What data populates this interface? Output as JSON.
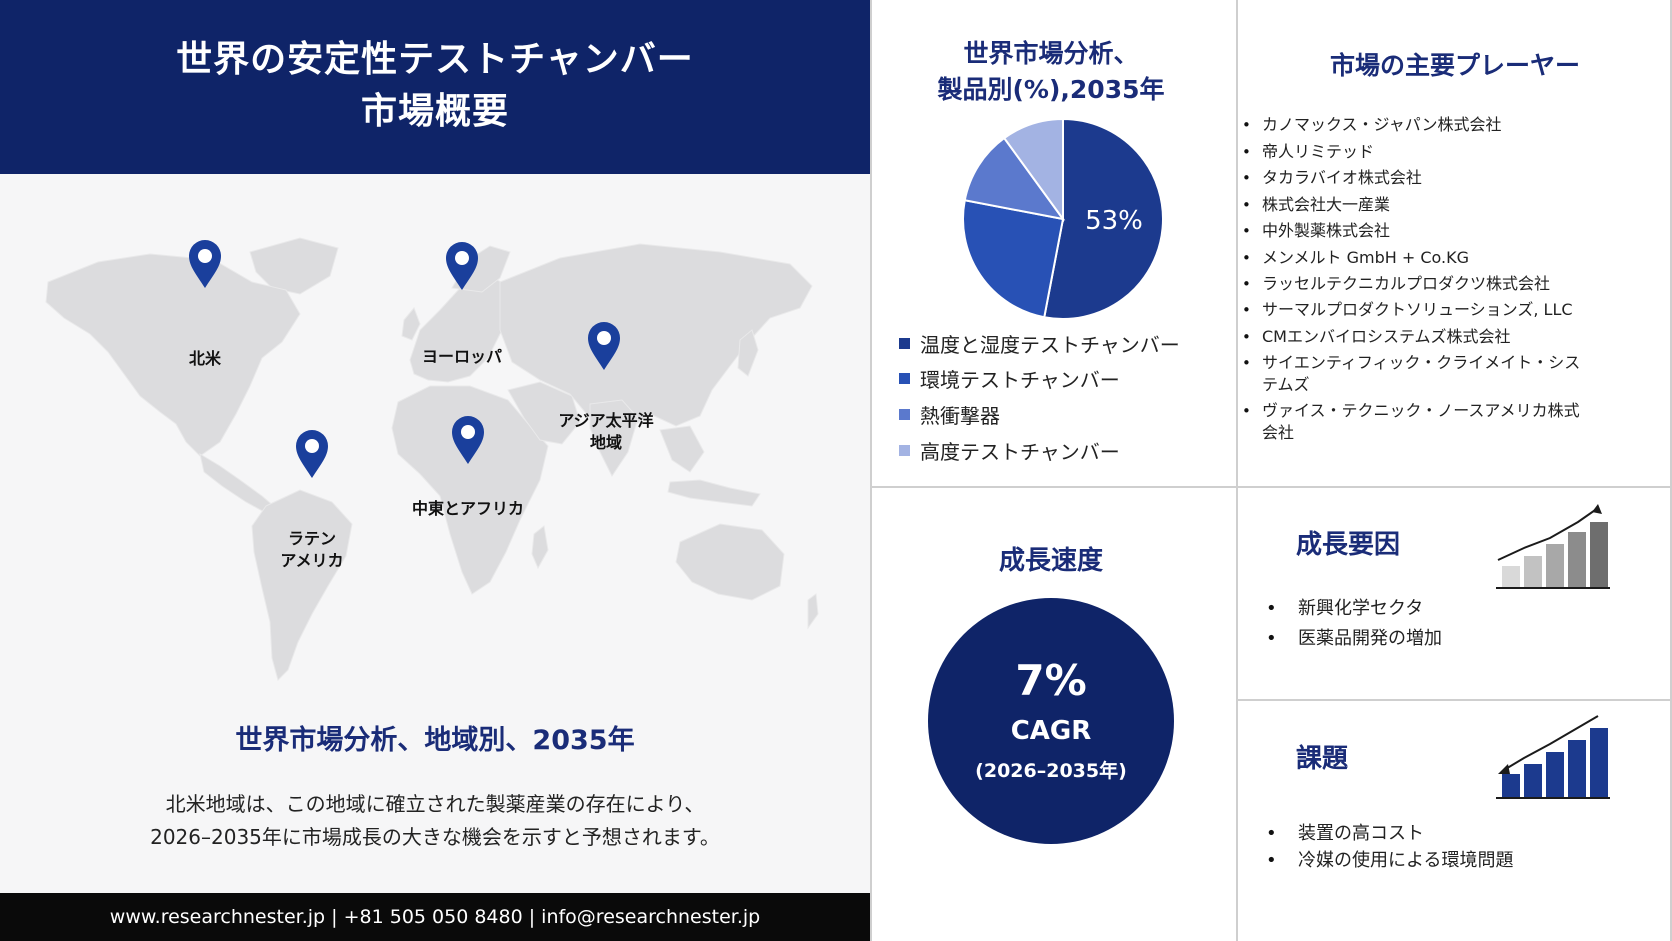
{
  "header": {
    "title_line1": "世界の安定性テストチャンバー",
    "title_line2": "市場概要"
  },
  "map": {
    "pins": [
      {
        "label": "北米"
      },
      {
        "label": "ヨーロッパ"
      },
      {
        "label_line1": "アジア太平洋",
        "label_line2": "地域"
      },
      {
        "label": "中東とアフリカ"
      },
      {
        "label_line1": "ラテン",
        "label_line2": "アメリカ"
      }
    ],
    "pin_color": "#1a3f9c"
  },
  "regional": {
    "heading": "世界市場分析、地域別、2035年",
    "text_line1": "北米地域は、この地域に確立された製薬産業の存在により、",
    "text_line2": "2026–2035年に市場成長の大きな機会を示すと予想されます。"
  },
  "footer": {
    "contact": "www.researchnester.jp | +81 505 050 8480 | info@researchnester.jp"
  },
  "chart_data": {
    "type": "pie",
    "title_line1": "世界市場分析、",
    "title_line2": "製品別(%),2035年",
    "series": [
      {
        "name": "温度と湿度テストチャンバー",
        "value": 53,
        "color": "#1c3a8e"
      },
      {
        "name": "環境テストチャンバー",
        "value": 25,
        "color": "#2851b5"
      },
      {
        "name": "熱衝撃器",
        "value": 12,
        "color": "#5b79cd"
      },
      {
        "name": "高度テストチャンバー",
        "value": 10,
        "color": "#a3b3e3"
      }
    ],
    "data_labels": [
      "53%"
    ]
  },
  "players": {
    "title": "市場の主要プレーヤー",
    "items": [
      "カノマックス・ジャパン株式会社",
      "帝人リミテッド",
      "タカラバイオ株式会社",
      "株式会社大一産業",
      "中外製薬株式会社",
      "メンメルト GmbH + Co.KG",
      "ラッセルテクニカルプロダクツ株式会社",
      "サーマルプロダクトソリューションズ, LLC",
      "CMエンバイロシステムズ株式会社",
      "サイエンティフィック・クライメイト・システムズ",
      "ヴァイス・テクニック・ノースアメリカ株式会社"
    ]
  },
  "growth_rate": {
    "title": "成長速度",
    "value": "7%",
    "label": "CAGR",
    "period": "(2026–2035年)"
  },
  "drivers": {
    "title": "成長要因",
    "items": [
      "新興化学セクタ",
      "医薬品開発の増加"
    ],
    "icon": "rising-bar-chart-icon"
  },
  "challenges": {
    "title": "課題",
    "items": [
      "装置の高コスト",
      "冷媒の使用による環境問題"
    ],
    "icon": "declining-bar-chart-icon"
  },
  "colors": {
    "navy": "#0f2468",
    "heading_blue": "#1a2c78",
    "map_gray": "#dcdcde"
  }
}
